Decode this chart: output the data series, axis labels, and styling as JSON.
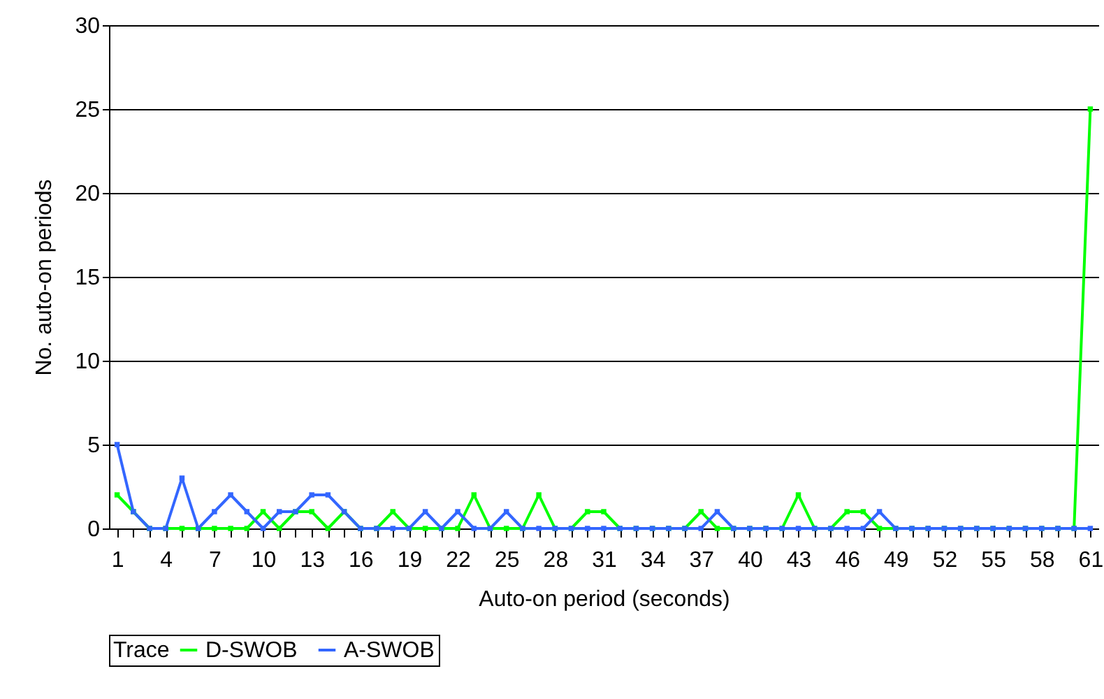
{
  "chart_data": {
    "type": "line",
    "xlabel": "Auto-on period (seconds)",
    "ylabel": "No. auto-on periods",
    "legend_title": "Trace",
    "categories": [
      "1",
      null,
      null,
      "4",
      null,
      null,
      "7",
      null,
      null,
      "10",
      null,
      null,
      "13",
      null,
      null,
      "16",
      null,
      null,
      "19",
      null,
      null,
      "22",
      null,
      null,
      "25",
      null,
      null,
      "28",
      null,
      null,
      "31",
      null,
      null,
      "34",
      null,
      null,
      "37",
      null,
      null,
      "40",
      null,
      null,
      "43",
      null,
      null,
      "46",
      null,
      null,
      "49",
      null,
      null,
      "52",
      null,
      null,
      "55",
      null,
      null,
      "58",
      null,
      null,
      "61"
    ],
    "series": [
      {
        "name": "D-SWOB",
        "color": "#00ff00",
        "values": [
          2,
          1,
          0,
          0,
          0,
          0,
          0,
          0,
          0,
          1,
          0,
          1,
          1,
          0,
          1,
          0,
          0,
          1,
          0,
          0,
          0,
          0,
          2,
          0,
          0,
          0,
          2,
          0,
          0,
          1,
          1,
          0,
          0,
          0,
          0,
          0,
          1,
          0,
          0,
          0,
          0,
          0,
          2,
          0,
          0,
          1,
          1,
          0,
          0,
          0,
          0,
          0,
          0,
          0,
          0,
          0,
          0,
          0,
          0,
          0,
          25
        ]
      },
      {
        "name": "A-SWOB",
        "color": "#3366ff",
        "values": [
          5,
          1,
          0,
          0,
          3,
          0,
          1,
          2,
          1,
          0,
          1,
          1,
          2,
          2,
          1,
          0,
          0,
          0,
          0,
          1,
          0,
          1,
          0,
          0,
          1,
          0,
          0,
          0,
          0,
          0,
          0,
          0,
          0,
          0,
          0,
          0,
          0,
          1,
          0,
          0,
          0,
          0,
          0,
          0,
          0,
          0,
          0,
          1,
          0,
          0,
          0,
          0,
          0,
          0,
          0,
          0,
          0,
          0,
          0,
          0,
          0
        ]
      }
    ],
    "ylim": [
      0,
      30
    ],
    "yticks": [
      0,
      5,
      10,
      15,
      20,
      25,
      30
    ],
    "grid": "y",
    "legend": "bottom",
    "marker": "square",
    "line_style": "solid"
  }
}
